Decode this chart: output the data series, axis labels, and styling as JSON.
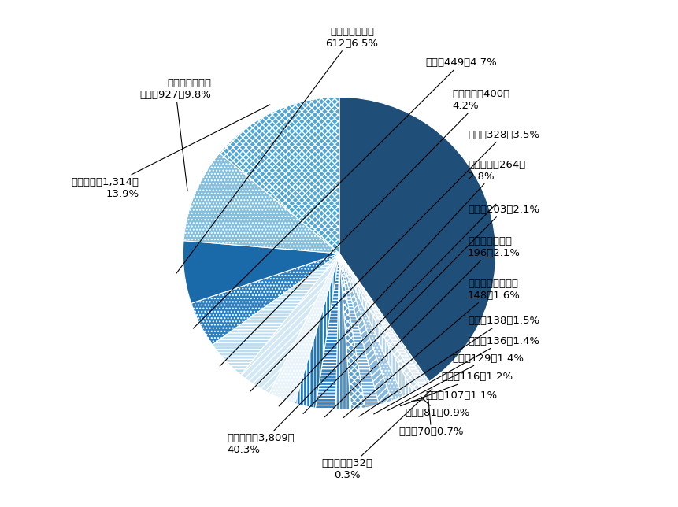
{
  "slices": [
    {
      "label": "市政工程",
      "value": 3809,
      "pct": "40.3%",
      "color": "#1f4e79",
      "hatch": "",
      "label_text": "市政工程，3,809，\n40.3%"
    },
    {
      "label": "社会保障",
      "value": 32,
      "pct": "0.3%",
      "color": "#c6dcec",
      "hatch": "....",
      "label_text": "社会保障，32，\n0.3%"
    },
    {
      "label": "农业",
      "value": 70,
      "pct": "0.7%",
      "color": "#deebf5",
      "hatch": "----",
      "label_text": "农业，70，0.7%"
    },
    {
      "label": "林业",
      "value": 81,
      "pct": "0.9%",
      "color": "#c9e0f0",
      "hatch": "xxxx",
      "label_text": "林业，81，0.9%"
    },
    {
      "label": "养老",
      "value": 107,
      "pct": "1.1%",
      "color": "#b3d3ea",
      "hatch": "||||",
      "label_text": "养老，107，1.1%"
    },
    {
      "label": "体育",
      "value": 116,
      "pct": "1.2%",
      "color": "#9ec6e5",
      "hatch": "....",
      "label_text": "体育，116，1.2%"
    },
    {
      "label": "能源",
      "value": 129,
      "pct": "1.4%",
      "color": "#88b9df",
      "hatch": "////",
      "label_text": "能源，129，1.4%"
    },
    {
      "label": "科技",
      "value": 136,
      "pct": "1.4%",
      "color": "#72acd9",
      "hatch": "----",
      "label_text": "科技，136，1.4%"
    },
    {
      "label": "其他",
      "value": 138,
      "pct": "1.5%",
      "color": "#5c9fd3",
      "hatch": "xxxx",
      "label_text": "其他，138，1.5%"
    },
    {
      "label": "保障性安居工程",
      "value": 148,
      "pct": "1.6%",
      "color": "#4792cd",
      "hatch": "||||",
      "label_text": "保障性安居工程，\n148，1.6%"
    },
    {
      "label": "政府基础设施",
      "value": 196,
      "pct": "2.1%",
      "color": "#3185c7",
      "hatch": "----",
      "label_text": "政府基础设施，\n196，2.1%"
    },
    {
      "label": "文化",
      "value": 203,
      "pct": "2.1%",
      "color": "#1b78c1",
      "hatch": "||||",
      "label_text": "文化，203，2.1%"
    },
    {
      "label": "医疗卫生",
      "value": 264,
      "pct": "2.8%",
      "color": "#e8f3fa",
      "hatch": "....",
      "label_text": "医疗卫生，264，\n2.8%"
    },
    {
      "label": "旅游",
      "value": 328,
      "pct": "3.5%",
      "color": "#d2e8f5",
      "hatch": "////",
      "label_text": "旅游，328，3.5%"
    },
    {
      "label": "水利建设",
      "value": 400,
      "pct": "4.2%",
      "color": "#bcddf0",
      "hatch": "----",
      "label_text": "水利建设，400，\n4.2%"
    },
    {
      "label": "教育",
      "value": 449,
      "pct": "4.7%",
      "color": "#2980c4",
      "hatch": "....",
      "label_text": "教育，449，4.7%"
    },
    {
      "label": "城镇综合开发",
      "value": 612,
      "pct": "6.5%",
      "color": "#1a6aaa",
      "hatch": "",
      "label_text": "城镇综合开发，\n612，6.5%"
    },
    {
      "label": "生态建设和环境保护",
      "value": 927,
      "pct": "9.8%",
      "color": "#82bedd",
      "hatch": "....",
      "label_text": "生态建设和环境\n保护，927，9.8%"
    },
    {
      "label": "交通运输",
      "value": 1314,
      "pct": "13.9%",
      "color": "#4da6d5",
      "hatch": "xxxx",
      "label_text": "交通运输，1,314，\n13.9%"
    }
  ],
  "font_size": 9.5,
  "figsize": [
    8.62,
    6.44
  ],
  "dpi": 100
}
